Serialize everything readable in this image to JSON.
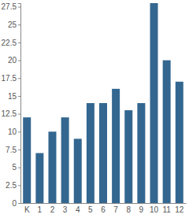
{
  "chart_data": {
    "type": "bar",
    "categories": [
      "K",
      "1",
      "2",
      "3",
      "4",
      "5",
      "6",
      "7",
      "8",
      "9",
      "10",
      "11",
      "12"
    ],
    "values": [
      12,
      7,
      10,
      12,
      9,
      14,
      14,
      16,
      13,
      14,
      28,
      20,
      17
    ],
    "color": "#336790",
    "ylim": [
      0,
      28
    ],
    "yticks": [
      0,
      2.5,
      5,
      7.5,
      10,
      12.5,
      15,
      17.5,
      20,
      22.5,
      25,
      27.5
    ],
    "grid": false
  }
}
